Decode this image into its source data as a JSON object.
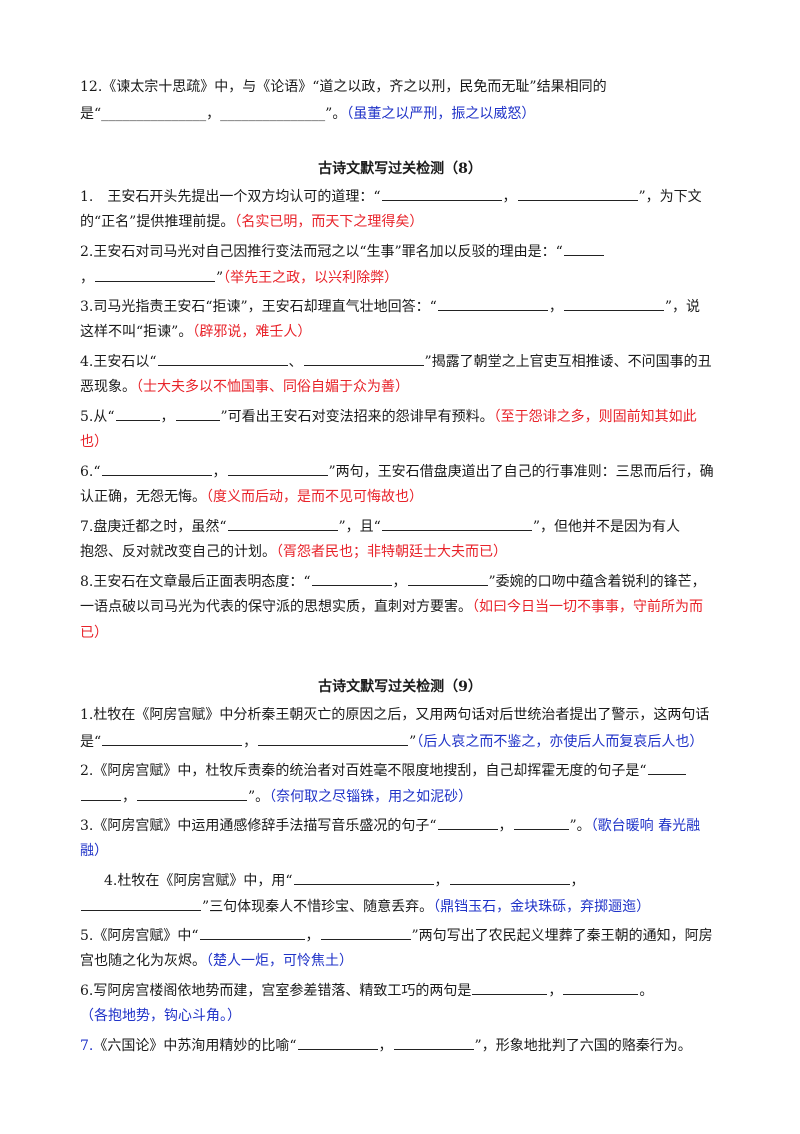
{
  "q12": {
    "l1": "12.《谏太宗十思疏》中，与《论语》“道之以政，齐之以刑，民免而无耻”结果相同的",
    "l2_a": "是“_______________，_______________”。",
    "answer": "（虽董之以严刑，振之以威怒）"
  },
  "sec8": {
    "title": "古诗文默写过关检测（8）",
    "q1": {
      "a": "1.　王安石开头先提出一个双方均认可的道理：“",
      "m": "，",
      "b": "”，为下文",
      "c": "的“正名”提供推理前提。",
      "ans": "（名实已明，而天下之理得矣）"
    },
    "q2": {
      "a": "2.王安石对司马光对自己因推行变法而冠之以“生事”罪名加以反驳的理由是：“",
      "c": "，",
      "d": "”",
      "ans": "（举先王之政，以兴利除弊）"
    },
    "q3": {
      "a": "3.司马光指责王安石“拒谏”，王安石却理直气壮地回答：“",
      "m": "，",
      "b": "”，说",
      "c": "这样不叫“拒谏”。",
      "ans": "（辟邪说，难壬人）"
    },
    "q4": {
      "a": "4.王安石以“",
      "m": "、",
      "b": "”揭露了朝堂之上官吏互相推诿、不问国事的丑",
      "c": "恶现象。",
      "ans": "（士大夫多以不恤国事、同俗自媚于众为善）"
    },
    "q5": {
      "a": "5.从“",
      "m": "，",
      "b": "”可看出王安石对变法招来的怨诽早有预料。",
      "ans1": "（至于怨诽之多，则固前知其如此",
      "ans2": "也）"
    },
    "q6": {
      "a": "6.“",
      "m": "，",
      "b": "”两句，王安石借盘庚道出了自己的行事准则：三思而后行，确",
      "c": "认正确，无怨无悔。",
      "ans": "（度义而后动，是而不见可悔故也）"
    },
    "q7": {
      "a": "7.盘庚迁都之时，虽然“",
      "m": "”，且“",
      "b": "”，但他并不是因为有人",
      "c": "抱怨、反对就改变自己的计划。",
      "ans": "（胥怨者民也；非特朝廷士大夫而已）"
    },
    "q8": {
      "a": "8.王安石在文章最后正面表明态度：“",
      "m": "，",
      "b": "”委婉的口吻中蕴含着锐利的锋芒，",
      "c": "一语点破以司马光为代表的保守派的思想实质，直刺对方要害。",
      "ans1": "（如曰今日当一切不事事，守前所为而",
      "ans2": "已）"
    }
  },
  "sec9": {
    "title": "古诗文默写过关检测（9）",
    "q1": {
      "a": "1.杜牧在《阿房宫赋》中分析秦王朝灭亡的原因之后，又用两句话对后世统治者提出了警示，这两句话",
      "b1": "是“",
      "m": "，",
      "b2": "”",
      "ans": "（后人哀之而不鉴之，亦使后人而复哀后人也）"
    },
    "q2": {
      "a": "2.《阿房宫赋》中，杜牧斥责秦的统治者对百姓毫不限度地搜刮，自己却挥霍无度的句子是“",
      "c": "，",
      "d": "”。",
      "ans": "（奈何取之尽锱铢，用之如泥砂）"
    },
    "q3": {
      "a": "3.《阿房宫赋》中运用通感修辞手法描写音乐盛况的句子“",
      "m": "，",
      "b": "”。",
      "ans1": "（歌台暖响 春光融",
      "ans2": "融）"
    },
    "q4": {
      "a": "4.杜牧在《阿房宫赋》中，用“",
      "m": "，",
      "b": "，",
      "d": "”三句体现秦人不惜珍宝、随意丢弃。",
      "ans": "（鼎铛玉石，金块珠砾，弃掷逦迤）"
    },
    "q5": {
      "a": "5.《阿房宫赋》中“",
      "m": "，",
      "b": "”两句写出了农民起义埋葬了秦王朝的通知，阿房",
      "c": "宫也随之化为灰烬。",
      "ans": "（楚人一炬，可怜焦土）"
    },
    "q6": {
      "a": "6.写阿房宫楼阁依地势而建，宫室参差错落、精致工巧的两句是",
      "m": "，",
      "b": "。",
      "ans": "（各抱地势，钩心斗角。）"
    },
    "q7": {
      "num": "7.",
      "a": "《六国论》中苏洵用精妙的比喻“",
      "m": "，",
      "b": "”，形象地批判了六国的赂秦行为。"
    }
  }
}
